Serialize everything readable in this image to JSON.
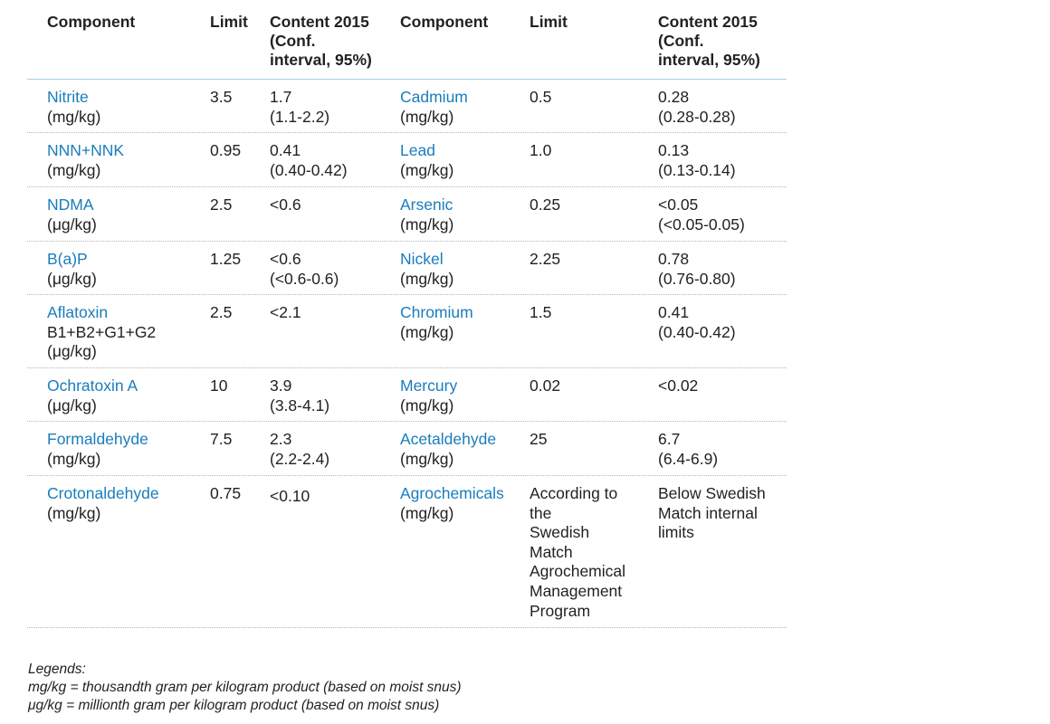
{
  "header": {
    "component_a": "Component",
    "limit_a": "Limit",
    "content_a": [
      "Content 2015",
      "(Conf.",
      "interval, 95%)"
    ],
    "component_b": "Component",
    "limit_b": "Limit",
    "content_b": [
      "Content 2015",
      "(Conf.",
      "interval, 95%)"
    ]
  },
  "rows": [
    {
      "left": {
        "name": "Nitrite",
        "unit": "(mg/kg)",
        "limit": "3.5",
        "content": "1.7",
        "interval": "(1.1-2.2)"
      },
      "right": {
        "name": "Cadmium",
        "unit": "(mg/kg)",
        "limit": "0.5",
        "content": "0.28",
        "interval": "(0.28-0.28)"
      }
    },
    {
      "left": {
        "name": "NNN+NNK",
        "unit": "(mg/kg)",
        "limit": "0.95",
        "content": "0.41",
        "interval": "(0.40-0.42)"
      },
      "right": {
        "name": "Lead",
        "unit": "(mg/kg)",
        "limit": "1.0",
        "content": "0.13",
        "interval": "(0.13-0.14)"
      }
    },
    {
      "left": {
        "name": "NDMA",
        "unit": "(μg/kg)",
        "limit": "2.5",
        "content": "<0.6",
        "interval": ""
      },
      "right": {
        "name": "Arsenic",
        "unit": "(mg/kg)",
        "limit": "0.25",
        "content": "<0.05",
        "interval": "(<0.05-0.05)"
      }
    },
    {
      "left": {
        "name": "B(a)P",
        "unit": "(μg/kg)",
        "limit": "1.25",
        "content": "<0.6",
        "interval": "(<0.6-0.6)"
      },
      "right": {
        "name": "Nickel",
        "unit": "(mg/kg)",
        "limit": "2.25",
        "content": "0.78",
        "interval": "(0.76-0.80)"
      }
    },
    {
      "left": {
        "name": "Aflatoxin",
        "extra": "B1+B2+G1+G2",
        "unit": "(μg/kg)",
        "limit": "2.5",
        "content": "<2.1",
        "interval": ""
      },
      "right": {
        "name": "Chromium",
        "unit": "(mg/kg)",
        "limit": "1.5",
        "content": "0.41",
        "interval": "(0.40-0.42)"
      }
    },
    {
      "left": {
        "name": "Ochratoxin A",
        "unit": "(μg/kg)",
        "limit": "10",
        "content": "3.9",
        "interval": "(3.8-4.1)"
      },
      "right": {
        "name": "Mercury",
        "unit": "(mg/kg)",
        "limit": "0.02",
        "content": "<0.02",
        "interval": ""
      }
    },
    {
      "left": {
        "name": "Formaldehyde",
        "unit": "(mg/kg)",
        "limit": "7.5",
        "content": "2.3",
        "interval": "(2.2-2.4)"
      },
      "right": {
        "name": "Acetaldehyde",
        "unit": "(mg/kg)",
        "limit": "25",
        "content": "6.7",
        "interval": "(6.4-6.9)"
      }
    },
    {
      "left": {
        "name": "Crotonaldehyde",
        "unit": "(mg/kg)",
        "limit": "0.75",
        "content": "<0.10",
        "interval": ""
      },
      "right": {
        "name": "Agrochemicals",
        "unit": "(mg/kg)",
        "limit_lines": [
          "According to",
          "the",
          "Swedish",
          "Match",
          "Agrochemical",
          "Management",
          "Program"
        ],
        "content_lines": [
          "Below Swedish",
          "Match internal",
          "limits"
        ]
      }
    }
  ],
  "legends": {
    "title": "Legends:",
    "mg": "mg/kg = thousandth gram per kilogram product (based on moist snus)",
    "ug": "μg/kg = millionth gram per kilogram product (based on moist snus)"
  }
}
